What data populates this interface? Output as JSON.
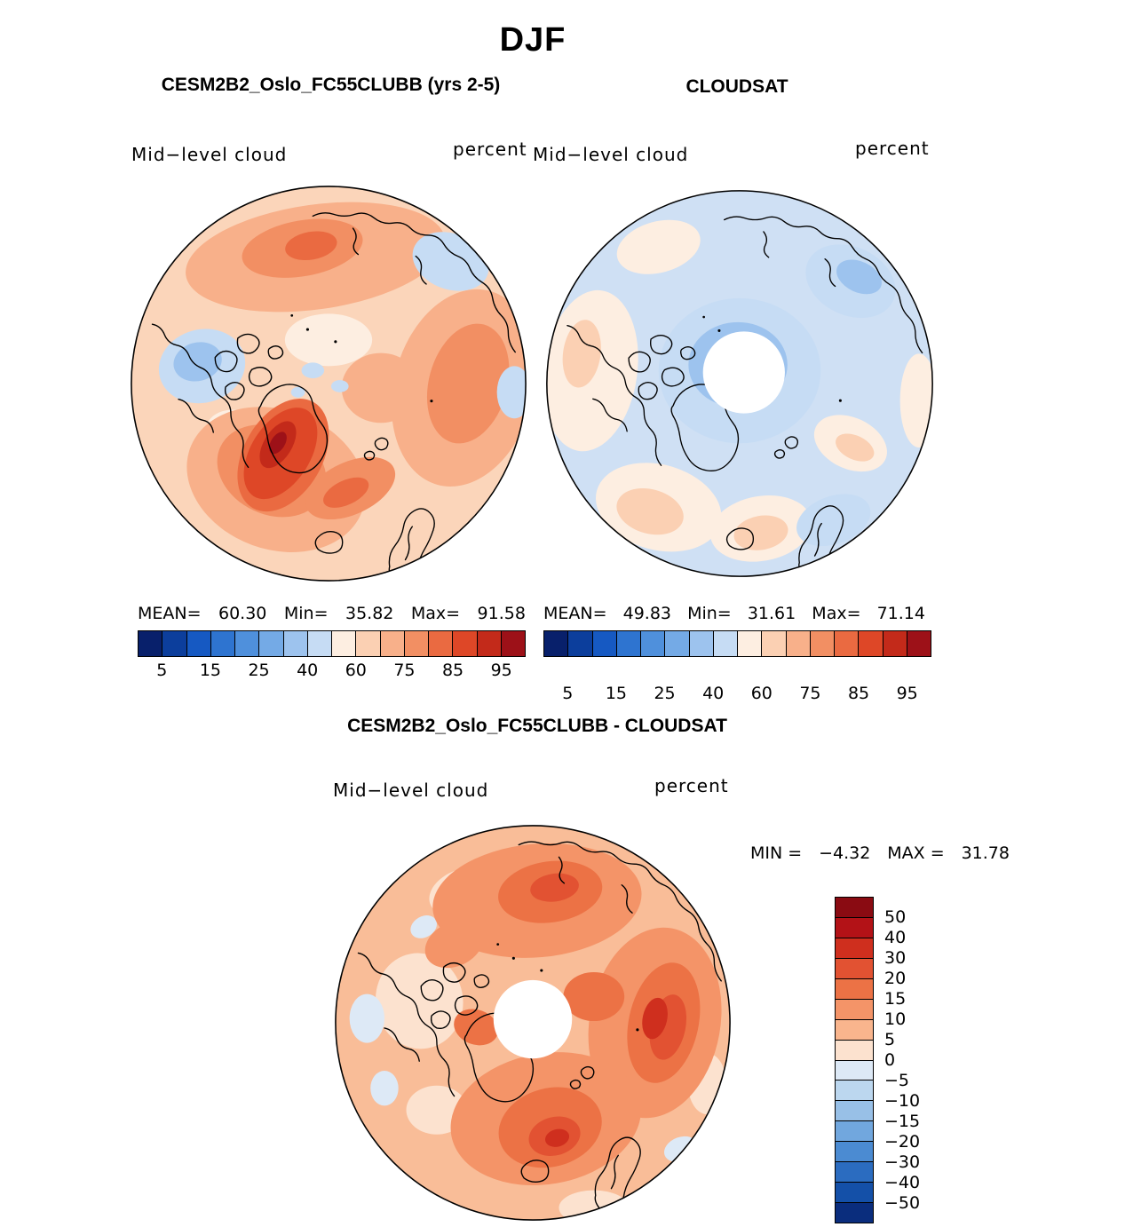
{
  "title": "DJF",
  "top_row": {
    "left": {
      "panel_title": "CESM2B2_Oslo_FC55CLUBB (yrs 2-5)",
      "field_label": "Mid−level cloud",
      "units_label": "percent",
      "stats": {
        "mean_label": "MEAN=",
        "mean": "60.30",
        "min_label": "Min=",
        "min": "35.82",
        "max_label": "Max=",
        "max": "91.58"
      }
    },
    "right": {
      "panel_title": "CLOUDSAT",
      "field_label": "Mid−level cloud",
      "units_label": "percent",
      "stats": {
        "mean_label": "MEAN=",
        "mean": "49.83",
        "min_label": "Min=",
        "min": "31.61",
        "max_label": "Max=",
        "max": "71.14"
      }
    }
  },
  "bottom": {
    "panel_title": "CESM2B2_Oslo_FC55CLUBB - CLOUDSAT",
    "field_label": "Mid−level cloud",
    "units_label": "percent",
    "stats": {
      "min_label": "MIN  =",
      "min": "−4.32",
      "max_label": "MAX =",
      "max": "31.78"
    }
  },
  "percent_colorbar": {
    "colors": [
      "#08206b",
      "#0c3e9c",
      "#1659c2",
      "#2e74d0",
      "#4f90dc",
      "#74aae6",
      "#9dc3ee",
      "#c6dcf4",
      "#fdeee1",
      "#fbd0b3",
      "#f8b08a",
      "#f28f63",
      "#ea6a41",
      "#de4727",
      "#c32a1a",
      "#9d1118"
    ],
    "tick_labels": [
      "5",
      "15",
      "25",
      "40",
      "60",
      "75",
      "85",
      "95"
    ]
  },
  "diff_colorbar": {
    "colors": [
      "#8a0b12",
      "#b31217",
      "#cf2f1e",
      "#e25232",
      "#ec7245",
      "#f49468",
      "#f9b58d",
      "#fce2cf",
      "#dde9f6",
      "#bcd7ef",
      "#98c0e7",
      "#71a7de",
      "#4b8bd2",
      "#2b6cc0",
      "#1450a8",
      "#0a2d7d"
    ],
    "tick_labels": [
      "50",
      "40",
      "30",
      "20",
      "15",
      "10",
      "5",
      "0",
      "−5",
      "−10",
      "−15",
      "−20",
      "−30",
      "−40",
      "−50"
    ]
  },
  "chart_data": [
    {
      "type": "heatmap",
      "subtype": "filled-contour north polar stereographic map",
      "panel": "top-left",
      "title": "CESM2B2_Oslo_FC55CLUBB (yrs 2-5)",
      "season": "DJF",
      "variable": "Mid−level cloud",
      "units": "percent",
      "statistics": {
        "mean": 60.3,
        "min": 35.82,
        "max": 91.58
      },
      "contour_levels": [
        5,
        10,
        15,
        20,
        25,
        30,
        40,
        50,
        60,
        70,
        75,
        80,
        85,
        90,
        95
      ],
      "labeled_ticks": [
        5,
        15,
        25,
        40,
        60,
        75,
        85,
        95
      ],
      "palette": "blue-white-red diverging, 16 classes",
      "legend_position": "bottom",
      "summary": "Mostly 55-85% (light to medium orange); maximum ~90% dark-red core over the Greenland/Davis Strait sector; light-blue minima ~40% over the Canadian Arctic, a small area near the pole and the upper-right edge."
    },
    {
      "type": "heatmap",
      "subtype": "filled-contour north polar stereographic map",
      "panel": "top-right",
      "title": "CLOUDSAT",
      "season": "DJF",
      "variable": "Mid−level cloud",
      "units": "percent",
      "statistics": {
        "mean": 49.83,
        "min": 31.61,
        "max": 71.14
      },
      "contour_levels": [
        5,
        10,
        15,
        20,
        25,
        30,
        40,
        50,
        60,
        70,
        75,
        80,
        85,
        90,
        95
      ],
      "labeled_ticks": [
        5,
        15,
        25,
        40,
        60,
        75,
        85,
        95
      ],
      "palette": "blue-white-red diverging, 16 classes",
      "legend_position": "bottom",
      "summary": "Mostly 40-55% (pale blue to near white); light-orange ~60-70% along the left and lower rim; deeper blue ~30-40% surrounding the pole; white circular data gap at the pole."
    },
    {
      "type": "heatmap",
      "subtype": "filled-contour north polar stereographic difference map",
      "panel": "bottom",
      "title": "CESM2B2_Oslo_FC55CLUBB - CLOUDSAT",
      "season": "DJF",
      "variable": "Mid−level cloud",
      "units": "percent",
      "statistics": {
        "min": -4.32,
        "max": 31.78
      },
      "contour_levels": [
        -50,
        -40,
        -30,
        -20,
        -15,
        -10,
        -5,
        0,
        5,
        10,
        15,
        20,
        30,
        40,
        50
      ],
      "palette": "red-white-blue diverging, 16 classes",
      "legend_position": "right",
      "summary": "Model minus CLOUDSAT: positive nearly everywhere (+5 to +30, orange/red), strongest over Scandinavia, Siberia and the right-hand sector; small −5 to 0 patches near the left and lower-right edges; white circular data gap at the pole."
    }
  ]
}
